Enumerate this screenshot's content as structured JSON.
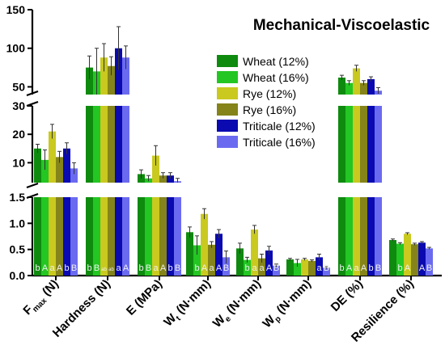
{
  "chart_data": {
    "type": "bar",
    "title": "Mechanical-Viscoelastic",
    "categories": [
      {
        "main": "F",
        "sub": "max",
        "rest": " (N)"
      },
      {
        "main": "Hardness (N)",
        "sub": "",
        "rest": ""
      },
      {
        "main": "E (MPa)",
        "sub": "",
        "rest": ""
      },
      {
        "main": "W",
        "sub": "t",
        "rest": " (N·mm)"
      },
      {
        "main": "W",
        "sub": "e",
        "rest": " (N·mm)"
      },
      {
        "main": "W",
        "sub": "p",
        "rest": " (N·mm)"
      },
      {
        "main": "DE (%)",
        "sub": "",
        "rest": ""
      },
      {
        "main": "Resilience (%)",
        "sub": "",
        "rest": ""
      }
    ],
    "y_segments": [
      {
        "range": [
          0,
          1.5
        ],
        "ticks": [
          "0.0",
          "0.5",
          "1.0",
          "1.5"
        ]
      },
      {
        "range": [
          3,
          30
        ],
        "ticks": [
          "10",
          "20",
          "30"
        ]
      },
      {
        "range": [
          40,
          150
        ],
        "ticks": [
          "50",
          "100",
          "150"
        ]
      }
    ],
    "series": [
      {
        "name": "Wheat (12%)",
        "color": "#0e8a0e",
        "values": [
          15,
          75,
          6,
          0.83,
          0.52,
          0.31,
          62,
          0.68
        ],
        "errors": [
          1.5,
          15,
          1.5,
          0.1,
          0.1,
          0.02,
          3,
          0.02
        ],
        "labels": [
          "b",
          "b",
          "b",
          "",
          "",
          "",
          "b",
          ""
        ]
      },
      {
        "name": "Wheat (16%)",
        "color": "#23c623",
        "values": [
          11,
          70,
          4.5,
          0.58,
          0.3,
          0.24,
          55,
          0.61
        ],
        "errors": [
          3.5,
          30,
          1,
          0.18,
          0.05,
          0.07,
          3,
          0.02
        ],
        "labels": [
          "A",
          "B",
          "B",
          "b",
          "b",
          "",
          "A",
          "b"
        ]
      },
      {
        "name": "Rye (12%)",
        "color": "#c9c920",
        "values": [
          21,
          88,
          12.5,
          1.18,
          0.88,
          0.31,
          74,
          0.8
        ],
        "errors": [
          2.5,
          18,
          3.5,
          0.1,
          0.08,
          0.02,
          4,
          0.02
        ],
        "labels": [
          "a",
          "ab",
          "a",
          "A",
          "a",
          "",
          "a",
          "A"
        ]
      },
      {
        "name": "Rye (16%)",
        "color": "#84841a",
        "values": [
          12,
          77,
          5.5,
          0.59,
          0.33,
          0.28,
          55,
          0.6
        ],
        "errors": [
          2,
          12,
          1,
          0.06,
          0.08,
          0.02,
          3,
          0.02
        ],
        "labels": [
          "A",
          "ab",
          "A",
          "a",
          "a",
          "",
          "A",
          ""
        ]
      },
      {
        "name": "Triticale (12%)",
        "color": "#0a0ab0",
        "values": [
          15,
          100,
          5.5,
          0.8,
          0.48,
          0.35,
          60,
          0.63
        ],
        "errors": [
          2,
          28,
          1,
          0.08,
          0.08,
          0.06,
          3,
          0.02
        ],
        "labels": [
          "b",
          "a",
          "b",
          "A",
          "A",
          "a",
          "b",
          "A"
        ]
      },
      {
        "name": "Triticale (16%)",
        "color": "#6a6af0",
        "values": [
          8,
          88,
          3.5,
          0.35,
          0.19,
          0.15,
          45,
          0.52
        ],
        "errors": [
          2,
          15,
          1,
          0.12,
          0.03,
          0.02,
          4,
          0.02
        ],
        "labels": [
          "B",
          "A",
          "B",
          "B",
          "B",
          "B",
          "B",
          "B"
        ]
      }
    ],
    "legend_placement": "right",
    "grid": false
  }
}
